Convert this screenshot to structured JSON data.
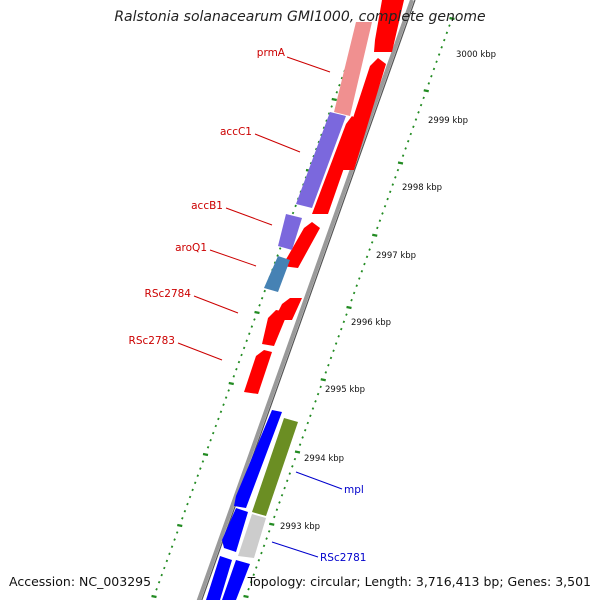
{
  "title": "Ralstonia solanacearum GMI1000, complete genome",
  "footer": {
    "accession": "Accession: NC_003295",
    "summary": "Topology: circular; Length: 3,716,413 bp; Genes: 3,501"
  },
  "colors": {
    "forward_gene": "#ff0000",
    "reverse_gene": "#0000ff",
    "gene_label": "#cc0000",
    "gene_label_blue": "#0000cc",
    "backbone": "#888888",
    "ruler": "#228b22",
    "gc_light_red": "#f09090",
    "cog_purple": "#7b68dd",
    "cog_steel": "#4682b4",
    "cog_olive": "#6b8e23",
    "cog_grey": "#cccccc"
  },
  "kbp_labels": [
    "3000 kbp",
    "2999 kbp",
    "2998 kbp",
    "2997 kbp",
    "2996 kbp",
    "2995 kbp",
    "2994 kbp",
    "2993 kbp"
  ],
  "gene_labels": [
    "prmA",
    "accC1",
    "accB1",
    "aroQ1",
    "RSc2784",
    "RSc2783",
    "mpl",
    "RSc2781"
  ]
}
